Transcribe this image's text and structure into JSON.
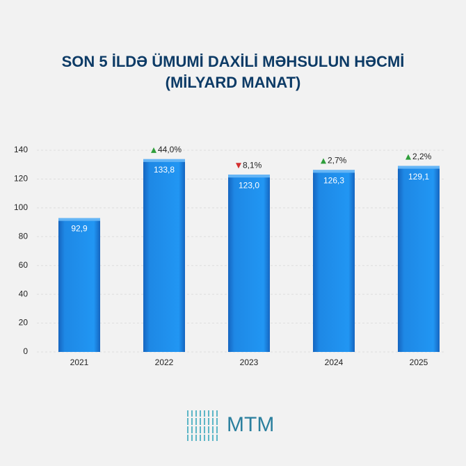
{
  "chart_data": {
    "type": "bar",
    "title": "SON 5 İLDƏ ÜMUMİ DAXİLİ MƏHSULUN HƏCMİ",
    "subtitle": "(MİLYARD MANAT)",
    "categories": [
      "2021",
      "2022",
      "2023",
      "2024",
      "2025"
    ],
    "values": [
      92.9,
      133.8,
      123.0,
      126.3,
      129.1
    ],
    "value_labels": [
      "92,9",
      "133,8",
      "123,0",
      "126,3",
      "129,1"
    ],
    "changes": [
      null,
      "44,0%",
      "8,1%",
      "2,7%",
      "2,2%"
    ],
    "change_directions": [
      null,
      "up",
      "down",
      "up",
      "up"
    ],
    "color": "#1e88e5",
    "ylim": [
      0,
      140
    ],
    "yticks": [
      0,
      20,
      40,
      60,
      80,
      100,
      120,
      140
    ],
    "grid": true,
    "logo": "MTM"
  }
}
